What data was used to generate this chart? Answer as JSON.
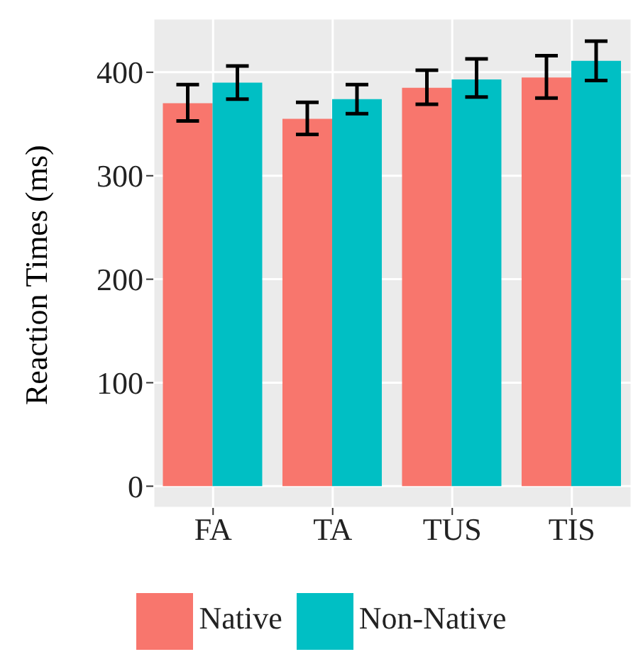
{
  "chart_data": {
    "type": "bar",
    "ylabel": "Reaction Times (ms)",
    "categories": [
      "FA",
      "TA",
      "TUS",
      "TIS"
    ],
    "series": [
      {
        "name": "Native",
        "color": "#f8766d",
        "values": [
          370,
          355,
          385,
          395
        ],
        "errors": [
          [
            353,
            388
          ],
          [
            340,
            371
          ],
          [
            369,
            402
          ],
          [
            375,
            416
          ]
        ]
      },
      {
        "name": "Non-Native",
        "color": "#00bfc4",
        "values": [
          390,
          374,
          393,
          411
        ],
        "errors": [
          [
            374,
            406
          ],
          [
            360,
            388
          ],
          [
            376,
            413
          ],
          [
            392,
            430
          ]
        ]
      }
    ],
    "ylim": [
      -21,
      452
    ],
    "yticks": [
      0,
      100,
      200,
      300,
      400
    ],
    "grid": true,
    "legend": "bottom"
  }
}
